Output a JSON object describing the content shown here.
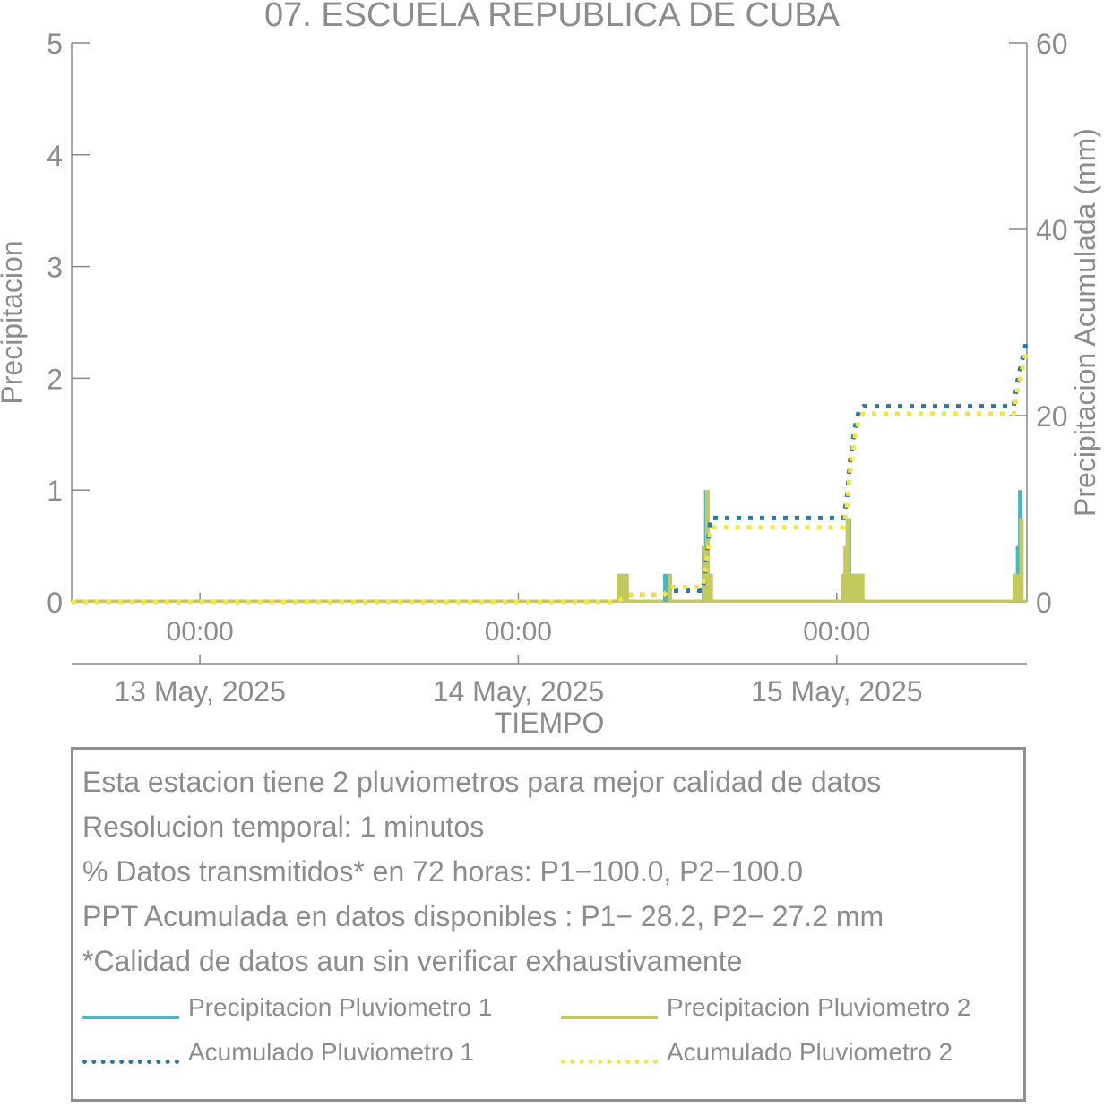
{
  "title": "07. ESCUELA REPUBLICA DE CUBA",
  "chart_data": {
    "type": "bar",
    "title": "07. ESCUELA REPUBLICA DE CUBA",
    "xlabel": "TIEMPO",
    "ylabel": "Precipitacion",
    "y2label": "Precipitacion Acumulada (mm)",
    "xlim": [
      "2025-05-12 14:20",
      "2025-05-15 14:20"
    ],
    "ylim": [
      0,
      5
    ],
    "y2lim": [
      0,
      60
    ],
    "yticks": [
      "0",
      "1",
      "2",
      "3",
      "4",
      "5"
    ],
    "y2ticks": [
      "0",
      "20",
      "40",
      "60"
    ],
    "xticks_time": [
      "00:00",
      "00:00",
      "00:00"
    ],
    "xticks_date": [
      "13 May, 2025",
      "14 May, 2025",
      "15 May, 2025"
    ],
    "grid": false,
    "colors": {
      "precip1": "#4cb5c5",
      "precip2": "#c3c95a",
      "acum1": "#2b78a3",
      "acum2": "#f5e53c",
      "axis": "#888888"
    },
    "series": [
      {
        "name": "Precipitacion Pluviometro 1",
        "kind": "bar",
        "x": [
          "2025-05-14 07:40",
          "2025-05-14 07:55",
          "2025-05-14 08:05",
          "2025-05-14 11:05",
          "2025-05-14 11:20",
          "2025-05-14 14:00",
          "2025-05-14 14:10",
          "2025-05-14 14:25",
          "2025-05-15 00:35",
          "2025-05-15 00:45",
          "2025-05-15 00:55",
          "2025-05-15 01:10",
          "2025-05-15 01:20",
          "2025-05-15 01:35",
          "2025-05-15 01:50",
          "2025-05-15 13:30",
          "2025-05-15 13:40",
          "2025-05-15 13:50"
        ],
        "values": [
          0.25,
          0.25,
          0.25,
          0.25,
          0.25,
          0.5,
          1.0,
          0.25,
          0.25,
          0.5,
          0.75,
          0.25,
          0.25,
          0.25,
          0.25,
          0.25,
          0.5,
          1.0
        ]
      },
      {
        "name": "Precipitacion Pluviometro 2",
        "kind": "bar",
        "x": [
          "2025-05-14 07:35",
          "2025-05-14 07:50",
          "2025-05-14 08:10",
          "2025-05-14 11:25",
          "2025-05-14 14:05",
          "2025-05-14 14:15",
          "2025-05-14 14:30",
          "2025-05-15 00:30",
          "2025-05-15 00:40",
          "2025-05-15 00:50",
          "2025-05-15 01:00",
          "2025-05-15 01:15",
          "2025-05-15 01:25",
          "2025-05-15 01:40",
          "2025-05-15 01:55",
          "2025-05-15 13:25",
          "2025-05-15 13:35",
          "2025-05-15 13:55"
        ],
        "values": [
          0.25,
          0.25,
          0.25,
          0.25,
          0.5,
          1.0,
          0.25,
          0.25,
          0.5,
          0.75,
          0.25,
          0.25,
          0.25,
          0.25,
          0.25,
          0.25,
          0.25,
          0.75
        ]
      },
      {
        "name": "Acumulado Pluviometro 1",
        "kind": "line",
        "x": [
          "2025-05-12 14:20",
          "2025-05-14 07:30",
          "2025-05-14 08:10",
          "2025-05-14 11:00",
          "2025-05-14 11:30",
          "2025-05-14 13:55",
          "2025-05-14 14:30",
          "2025-05-15 00:30",
          "2025-05-15 00:45",
          "2025-05-15 01:00",
          "2025-05-15 01:20",
          "2025-05-15 01:40",
          "2025-05-15 02:00",
          "2025-05-15 13:20",
          "2025-05-15 13:40",
          "2025-05-15 14:20"
        ],
        "values": [
          0,
          0,
          0.75,
          0.75,
          1.2,
          1.2,
          9.0,
          9.0,
          11.0,
          15.0,
          18.5,
          20.5,
          21.0,
          21.0,
          24.0,
          28.2
        ]
      },
      {
        "name": "Acumulado Pluviometro 2",
        "kind": "line",
        "x": [
          "2025-05-12 14:20",
          "2025-05-14 07:30",
          "2025-05-14 08:10",
          "2025-05-14 11:00",
          "2025-05-14 11:30",
          "2025-05-14 13:55",
          "2025-05-14 14:30",
          "2025-05-15 00:30",
          "2025-05-15 00:45",
          "2025-05-15 01:00",
          "2025-05-15 01:20",
          "2025-05-15 01:40",
          "2025-05-15 02:00",
          "2025-05-15 13:20",
          "2025-05-15 13:40",
          "2025-05-15 14:20"
        ],
        "values": [
          0,
          0,
          0.75,
          0.75,
          1.6,
          1.6,
          8.0,
          8.0,
          10.0,
          14.0,
          17.5,
          19.5,
          20.2,
          20.2,
          23.0,
          27.2
        ]
      }
    ]
  },
  "info": {
    "line1": "Esta estacion tiene 2 pluviometros para mejor calidad de datos",
    "line2": "Resolucion temporal: 1 minutos",
    "line3": "% Datos transmitidos* en 72 horas: P1−100.0, P2−100.0",
    "line4": "PPT Acumulada en datos disponibles : P1− 28.2, P2− 27.2 mm",
    "line5": "*Calidad de datos aun sin verificar exhaustivamente"
  },
  "legend": {
    "precip1": "Precipitacion Pluviometro 1",
    "precip2": "Precipitacion Pluviometro 2",
    "acum1": "Acumulado Pluviometro 1",
    "acum2": "Acumulado Pluviometro 2"
  }
}
